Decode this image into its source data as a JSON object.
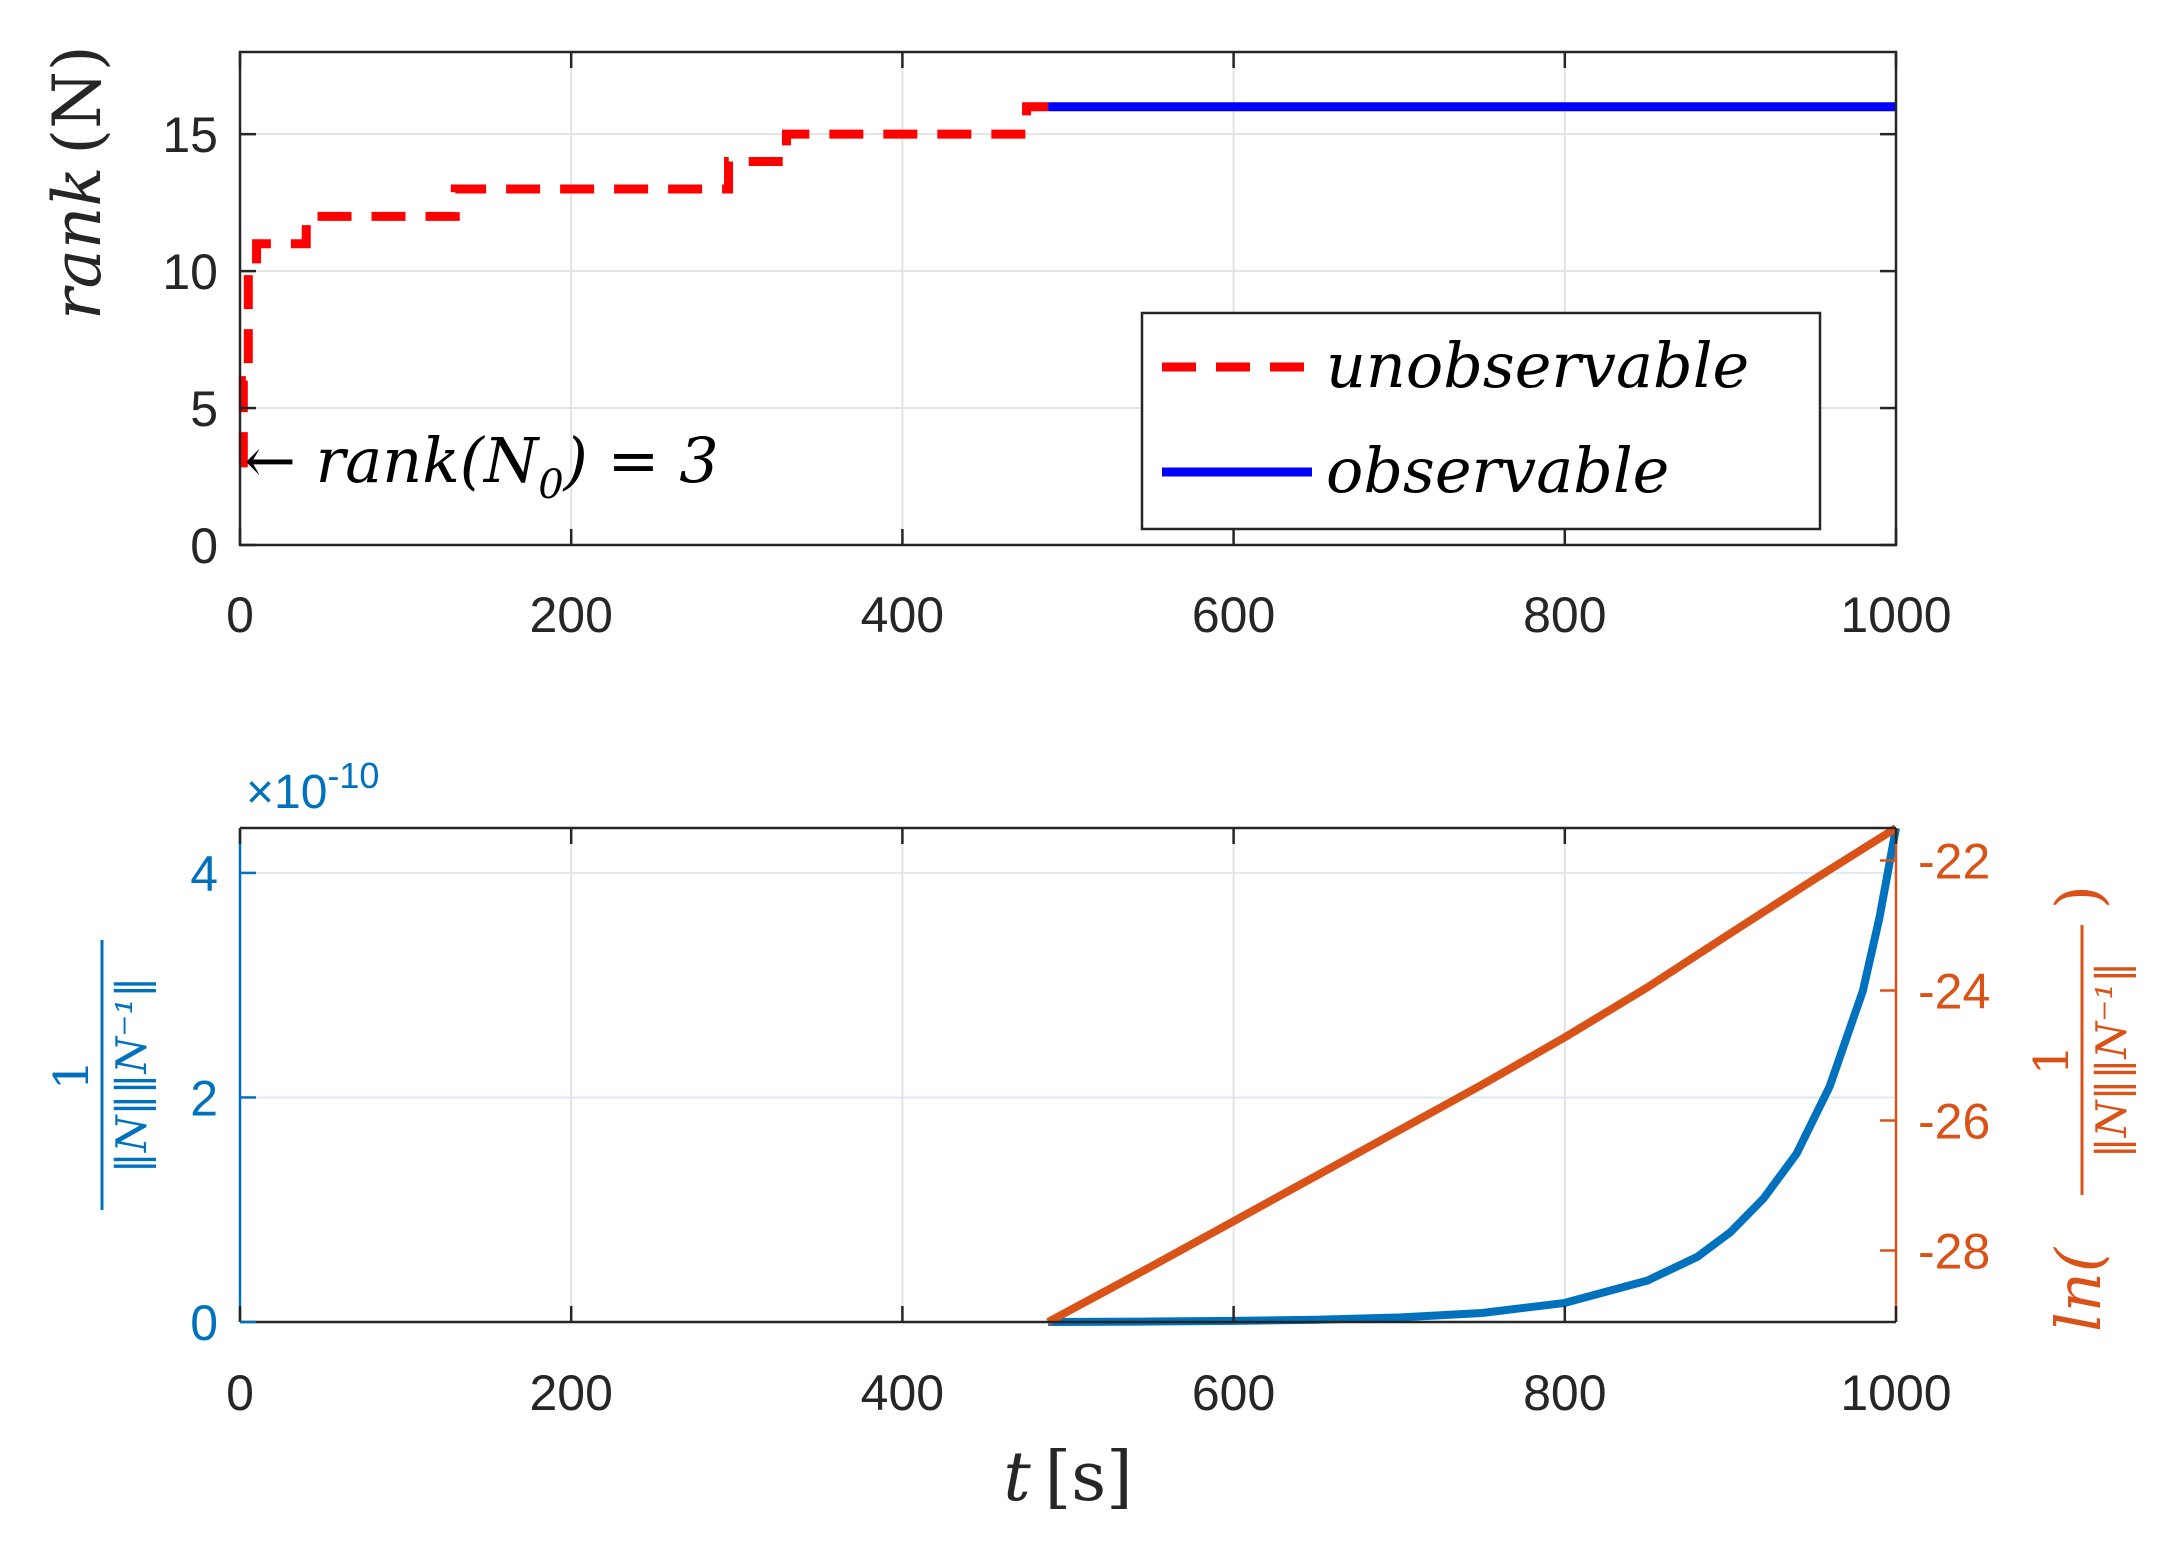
{
  "chart_data": [
    {
      "type": "line",
      "panel": "top",
      "ylabel_var": "rank",
      "ylabel_arg": "(N)",
      "xlim": [
        0,
        1000
      ],
      "ylim": [
        0,
        18
      ],
      "xticks": [
        "0",
        "200",
        "400",
        "600",
        "800",
        "1000"
      ],
      "yticks": [
        "0",
        "5",
        "10",
        "15"
      ],
      "grid": true,
      "legend": {
        "position": "lower-right",
        "entries": [
          "unobservable",
          "observable"
        ]
      },
      "annotation": {
        "text": "← rank(N",
        "sub": "0",
        "rest": ") = 3",
        "x": 0,
        "y": 3
      },
      "series": [
        {
          "name": "unobservable",
          "style": "dashed",
          "color": "#ff0000",
          "x": [
            0,
            2,
            2,
            5,
            5,
            10,
            10,
            40,
            40,
            130,
            130,
            295,
            295,
            330,
            330,
            475,
            475,
            488
          ],
          "y": [
            3,
            3,
            6,
            6,
            10,
            10,
            11,
            11,
            12,
            12,
            13,
            13,
            14,
            14,
            15,
            15,
            16,
            16
          ]
        },
        {
          "name": "observable",
          "style": "solid",
          "color": "#0000ff",
          "x": [
            488,
            1000
          ],
          "y": [
            16,
            16
          ]
        }
      ]
    },
    {
      "type": "line",
      "panel": "bottom",
      "dual_axis": true,
      "xlabel_var": "t",
      "xlabel_unit": "[s]",
      "xlim": [
        0,
        1000
      ],
      "xticks": [
        "0",
        "200",
        "400",
        "600",
        "800",
        "1000"
      ],
      "left_axis": {
        "color": "#0072bd",
        "ylim": [
          0,
          4.4
        ],
        "yticks": [
          "0",
          "2",
          "4"
        ],
        "exponent_label": "×10",
        "exponent_power": "-10",
        "label_num": "1",
        "label_den": "‖N‖‖N⁻¹‖"
      },
      "right_axis": {
        "color": "#d95319",
        "ylim": [
          -29.1,
          -21.5
        ],
        "yticks": [
          "-28",
          "-26",
          "-24",
          "-22"
        ],
        "label_prefix": "ln(",
        "label_num": "1",
        "label_den": "‖N‖‖N⁻¹‖",
        "label_suffix": ")"
      },
      "grid": true,
      "series": [
        {
          "name": "1/(||N|| ||N^-1||)",
          "axis": "left",
          "color": "#0072bd",
          "x": [
            488,
            550,
            600,
            650,
            700,
            750,
            800,
            850,
            880,
            900,
            920,
            940,
            960,
            980,
            990,
            1000
          ],
          "y": [
            0.0,
            0.004,
            0.01,
            0.02,
            0.04,
            0.08,
            0.17,
            0.37,
            0.58,
            0.8,
            1.1,
            1.5,
            2.1,
            2.95,
            3.6,
            4.4
          ]
        },
        {
          "name": "ln(1/(||N|| ||N^-1||))",
          "axis": "right",
          "color": "#d95319",
          "x": [
            488,
            550,
            600,
            650,
            700,
            750,
            800,
            850,
            900,
            950,
            1000
          ],
          "y": [
            -29.1,
            -28.25,
            -27.55,
            -26.85,
            -26.15,
            -25.45,
            -24.72,
            -23.95,
            -23.12,
            -22.3,
            -21.5
          ]
        }
      ]
    }
  ]
}
